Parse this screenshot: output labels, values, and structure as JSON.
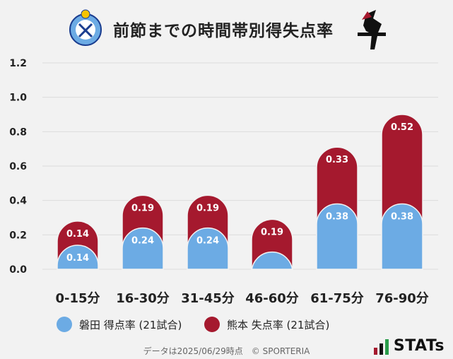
{
  "title": "前節までの時間帯別得失点率",
  "logos": {
    "left": "jubilo-iwata-crest",
    "right": "roasso-kumamoto-crest"
  },
  "colors": {
    "jubilo": "#6cabe4",
    "kumamoto": "#a5192e"
  },
  "chart_data": {
    "type": "bar",
    "stacked": true,
    "categories": [
      "0-15分",
      "16-30分",
      "31-45分",
      "46-60分",
      "61-75分",
      "76-90分"
    ],
    "series": [
      {
        "name": "磐田 得点率 (21試合)",
        "values": [
          0.14,
          0.24,
          0.24,
          0.1,
          0.38,
          0.38
        ],
        "labels": [
          "0.14",
          "0.24",
          "0.24",
          "",
          "0.38",
          "0.38"
        ]
      },
      {
        "name": "熊本 失点率 (21試合)",
        "values": [
          0.14,
          0.19,
          0.19,
          0.19,
          0.33,
          0.52
        ],
        "labels": [
          "0.14",
          "0.19",
          "0.19",
          "0.19",
          "0.33",
          "0.52"
        ]
      }
    ],
    "yticks": [
      "0.0",
      "0.2",
      "0.4",
      "0.6",
      "0.8",
      "1.0",
      "1.2"
    ],
    "ylim": [
      0,
      1.2
    ],
    "grid": true,
    "legend_position": "bottom"
  },
  "footer": "データは2025/06/29時点　© SPORTERIA",
  "brand": "STATs"
}
